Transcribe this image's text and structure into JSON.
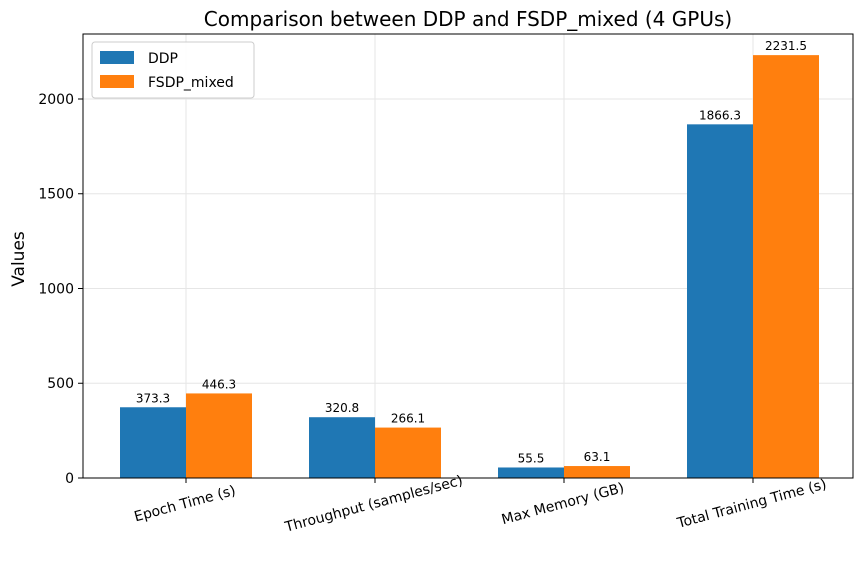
{
  "chart_data": {
    "type": "bar",
    "title": "Comparison between DDP and FSDP_mixed (4 GPUs)",
    "xlabel": "",
    "ylabel": "Values",
    "categories": [
      "Epoch Time (s)",
      "Throughput (samples/sec)",
      "Max Memory (GB)",
      "Total Training Time (s)"
    ],
    "series": [
      {
        "name": "DDP",
        "color": "#1f77b4",
        "values": [
          373.3,
          320.8,
          55.5,
          1866.3
        ]
      },
      {
        "name": "FSDP_mixed",
        "color": "#ff7f0e",
        "values": [
          446.3,
          266.1,
          63.1,
          2231.5
        ]
      }
    ],
    "yticks": [
      0,
      500,
      1000,
      1500,
      2000
    ],
    "ylim": [
      0,
      2343
    ],
    "grid": true,
    "legend_position": "top-left",
    "xtick_rotation": 15
  }
}
